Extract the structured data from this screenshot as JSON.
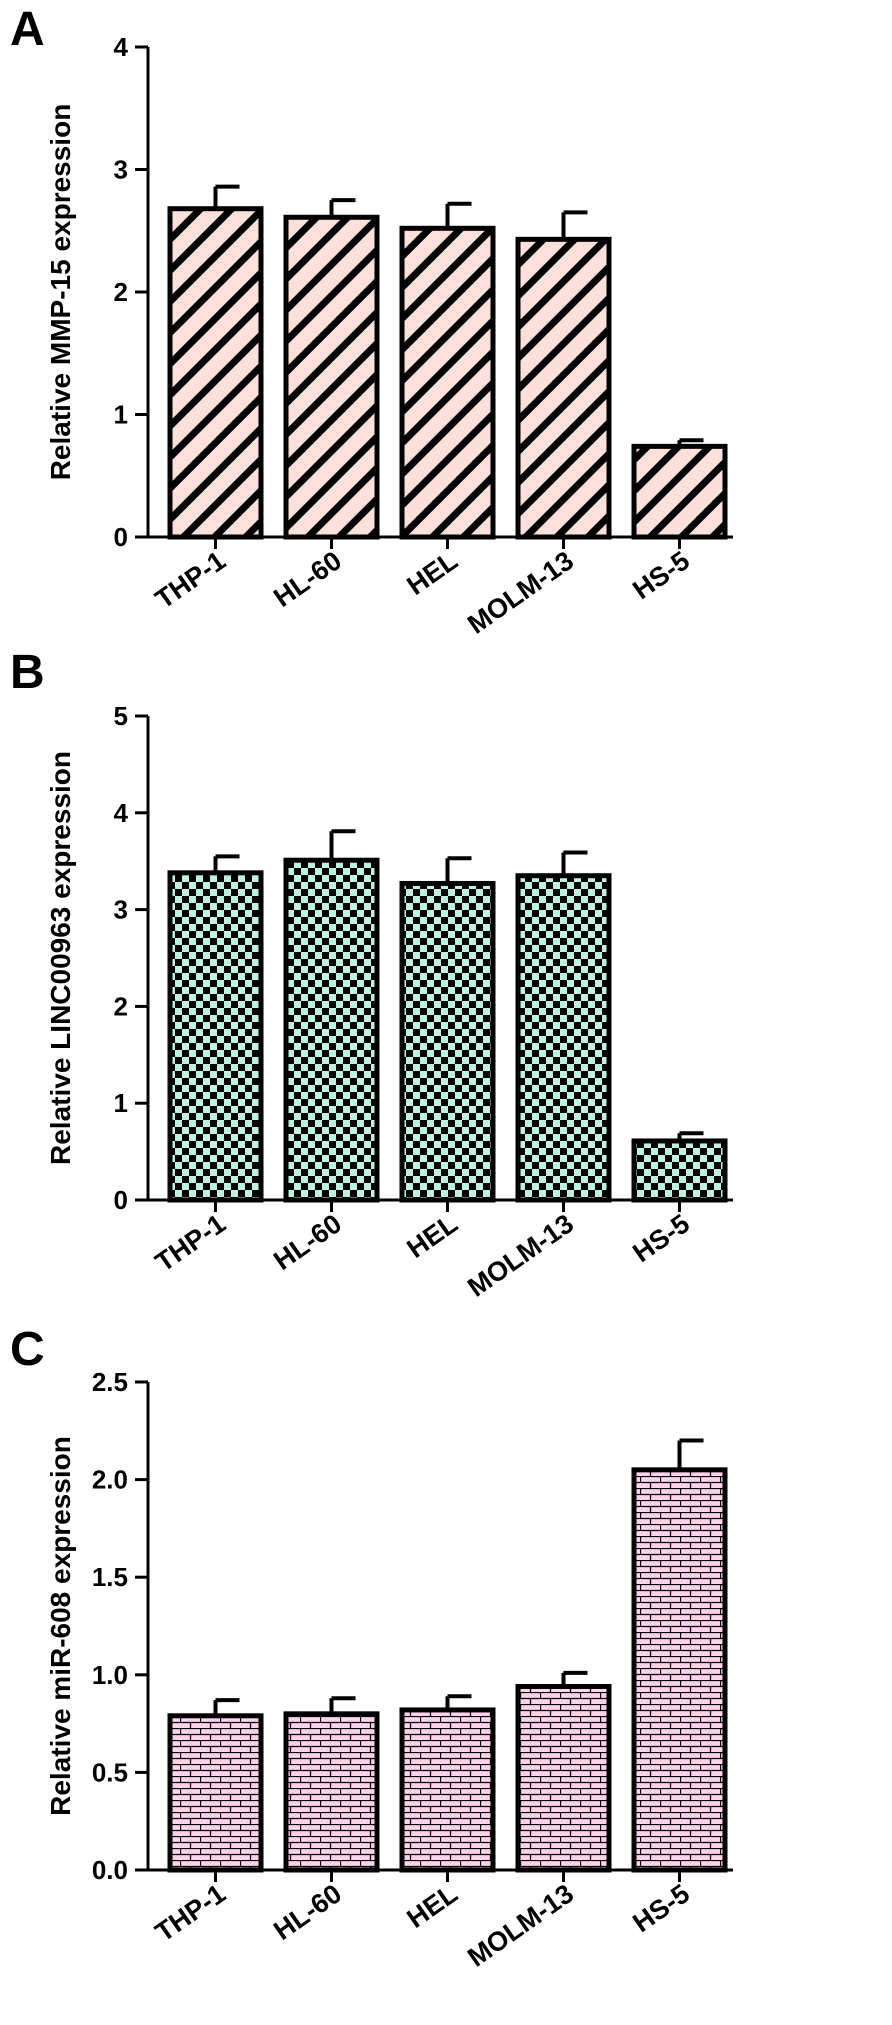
{
  "chart_data": [
    {
      "panel": "A",
      "type": "bar",
      "categories": [
        "THP-1",
        "HL-60",
        "HEL",
        "MOLM-13",
        "HS-5"
      ],
      "values": [
        2.68,
        2.61,
        2.52,
        2.43,
        0.74
      ],
      "errors": [
        0.18,
        0.14,
        0.2,
        0.22,
        0.05
      ],
      "ylabel": "Relative MMP-15 expression",
      "ylim": [
        0,
        4
      ],
      "yticks": [
        "0",
        "1",
        "2",
        "3",
        "4"
      ],
      "fill_color": "#fde0dc",
      "pattern": "diagonal-stripes"
    },
    {
      "panel": "B",
      "type": "bar",
      "categories": [
        "THP-1",
        "HL-60",
        "HEL",
        "MOLM-13",
        "HS-5"
      ],
      "values": [
        3.38,
        3.51,
        3.27,
        3.35,
        0.61
      ],
      "errors": [
        0.17,
        0.3,
        0.26,
        0.24,
        0.08
      ],
      "ylabel": "Relative LINC00963 expression",
      "ylim": [
        0,
        5
      ],
      "yticks": [
        "0",
        "1",
        "2",
        "3",
        "4",
        "5"
      ],
      "fill_color": "#bff0e0",
      "pattern": "checkerboard"
    },
    {
      "panel": "C",
      "type": "bar",
      "categories": [
        "THP-1",
        "HL-60",
        "HEL",
        "MOLM-13",
        "HS-5"
      ],
      "values": [
        0.79,
        0.8,
        0.82,
        0.94,
        2.05
      ],
      "errors": [
        0.08,
        0.08,
        0.07,
        0.07,
        0.15
      ],
      "ylabel": "Relative miR-608 expression",
      "ylim": [
        0,
        2.5
      ],
      "yticks": [
        "0.0",
        "0.5",
        "1.0",
        "1.5",
        "2.0",
        "2.5"
      ],
      "fill_color": "#ffd2ec",
      "pattern": "brick"
    }
  ]
}
